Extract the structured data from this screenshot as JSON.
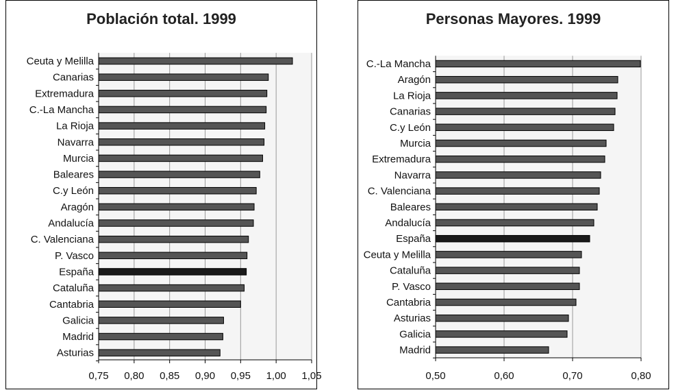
{
  "chart_data": [
    {
      "type": "bar",
      "orientation": "horizontal",
      "title": "Población total. 1999",
      "xlabel": "",
      "ylabel": "",
      "xlim": [
        0.75,
        1.05
      ],
      "ticks": [
        "0,75",
        "0,80",
        "0,85",
        "0,90",
        "0,95",
        "1,00",
        "1,05"
      ],
      "grid": "vertical",
      "categories": [
        "Ceuta y Melilla",
        "Canarias",
        "Extremadura",
        "C.-La Mancha",
        "La Rioja",
        "Navarra",
        "Murcia",
        "Baleares",
        "C.y León",
        "Aragón",
        "Andalucía",
        "C. Valenciana",
        "P. Vasco",
        "España",
        "Cataluña",
        "Cantabria",
        "Galicia",
        "Madrid",
        "Asturias"
      ],
      "values": [
        1.023,
        0.989,
        0.987,
        0.986,
        0.984,
        0.983,
        0.981,
        0.977,
        0.972,
        0.969,
        0.968,
        0.961,
        0.959,
        0.958,
        0.955,
        0.95,
        0.926,
        0.925,
        0.921
      ],
      "highlight": "España",
      "colors": {
        "bar": "#555555",
        "highlight_bar": "#1a1a1a",
        "plot_bg": "#f5f5f5",
        "grid": "#999999"
      }
    },
    {
      "type": "bar",
      "orientation": "horizontal",
      "title": "Personas Mayores. 1999",
      "xlabel": "",
      "ylabel": "",
      "xlim": [
        0.5,
        0.8
      ],
      "ticks": [
        "0,50",
        "0,60",
        "0,70",
        "0,80"
      ],
      "grid": "vertical",
      "categories": [
        "C.-La Mancha",
        "Aragón",
        "La Rioja",
        "Canarias",
        "C.y León",
        "Murcia",
        "Extremadura",
        "Navarra",
        "C. Valenciana",
        "Baleares",
        "Andalucía",
        "España",
        "Ceuta y Melilla",
        "Cataluña",
        "P. Vasco",
        "Cantabria",
        "Asturias",
        "Galicia",
        "Madrid"
      ],
      "values": [
        0.799,
        0.766,
        0.765,
        0.762,
        0.76,
        0.749,
        0.747,
        0.741,
        0.739,
        0.736,
        0.731,
        0.725,
        0.713,
        0.71,
        0.71,
        0.705,
        0.694,
        0.692,
        0.665
      ],
      "highlight": "España",
      "colors": {
        "bar": "#555555",
        "highlight_bar": "#1a1a1a",
        "plot_bg": "#f5f5f5",
        "grid": "#999999"
      }
    }
  ]
}
